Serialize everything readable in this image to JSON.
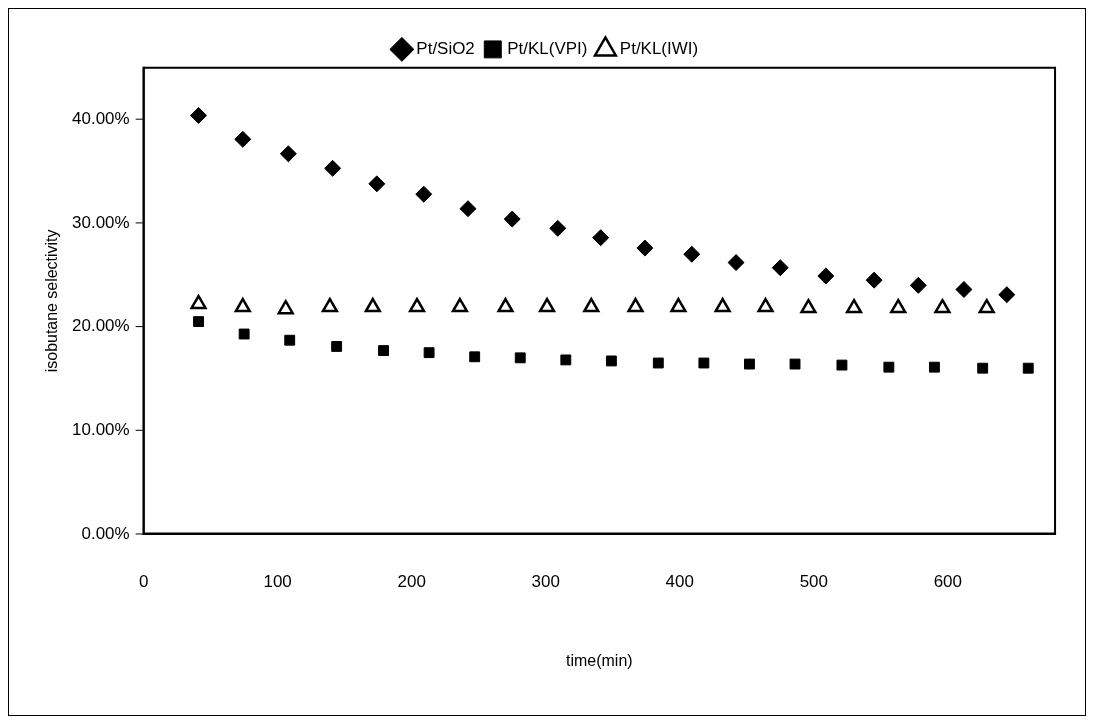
{
  "chart_data": {
    "type": "scatter",
    "xlabel": "time(min)",
    "ylabel": "isobutane selectivity",
    "xlim": [
      0,
      680
    ],
    "xticks": [
      0,
      100,
      200,
      300,
      400,
      500,
      600
    ],
    "ylim": [
      0,
      45
    ],
    "yticks": [
      {
        "value": 0,
        "label": "0.00%"
      },
      {
        "value": 10,
        "label": "10.00%"
      },
      {
        "value": 20,
        "label": "20.00%"
      },
      {
        "value": 30,
        "label": "30.00%"
      },
      {
        "value": 40,
        "label": "40.00%"
      }
    ],
    "legend": "top",
    "grid": false,
    "series": [
      {
        "name": "Pt/SiO2",
        "color": "#000000",
        "marker": "diamond",
        "x": [
          41,
          74,
          108,
          141,
          174,
          209,
          242,
          275,
          309,
          341,
          374,
          409,
          442,
          475,
          509,
          545,
          578,
          612,
          644
        ],
        "values": [
          40.4,
          38.1,
          36.7,
          35.3,
          33.8,
          32.8,
          31.4,
          30.4,
          29.5,
          28.6,
          27.6,
          27.0,
          26.2,
          25.7,
          24.9,
          24.5,
          24.0,
          23.6,
          23.1
        ]
      },
      {
        "name": "Pt/KL(VPI)",
        "color": "#000000",
        "marker": "square",
        "x": [
          41,
          75,
          109,
          144,
          179,
          213,
          247,
          281,
          315,
          349,
          384,
          418,
          452,
          486,
          521,
          556,
          590,
          626,
          660
        ],
        "values": [
          20.5,
          19.3,
          18.7,
          18.1,
          17.7,
          17.5,
          17.1,
          17.0,
          16.8,
          16.7,
          16.5,
          16.5,
          16.4,
          16.4,
          16.3,
          16.1,
          16.1,
          16.0,
          16.0
        ]
      },
      {
        "name": "Pt/KL(IWI)",
        "color": "#000000",
        "marker": "triangle",
        "x": [
          41,
          74,
          106,
          139,
          171,
          204,
          236,
          270,
          301,
          334,
          367,
          399,
          432,
          464,
          496,
          530,
          563,
          596,
          629
        ],
        "values": [
          22.2,
          21.9,
          21.7,
          21.9,
          21.9,
          21.9,
          21.9,
          21.9,
          21.9,
          21.9,
          21.9,
          21.9,
          21.9,
          21.9,
          21.8,
          21.8,
          21.8,
          21.8,
          21.8
        ]
      }
    ]
  }
}
